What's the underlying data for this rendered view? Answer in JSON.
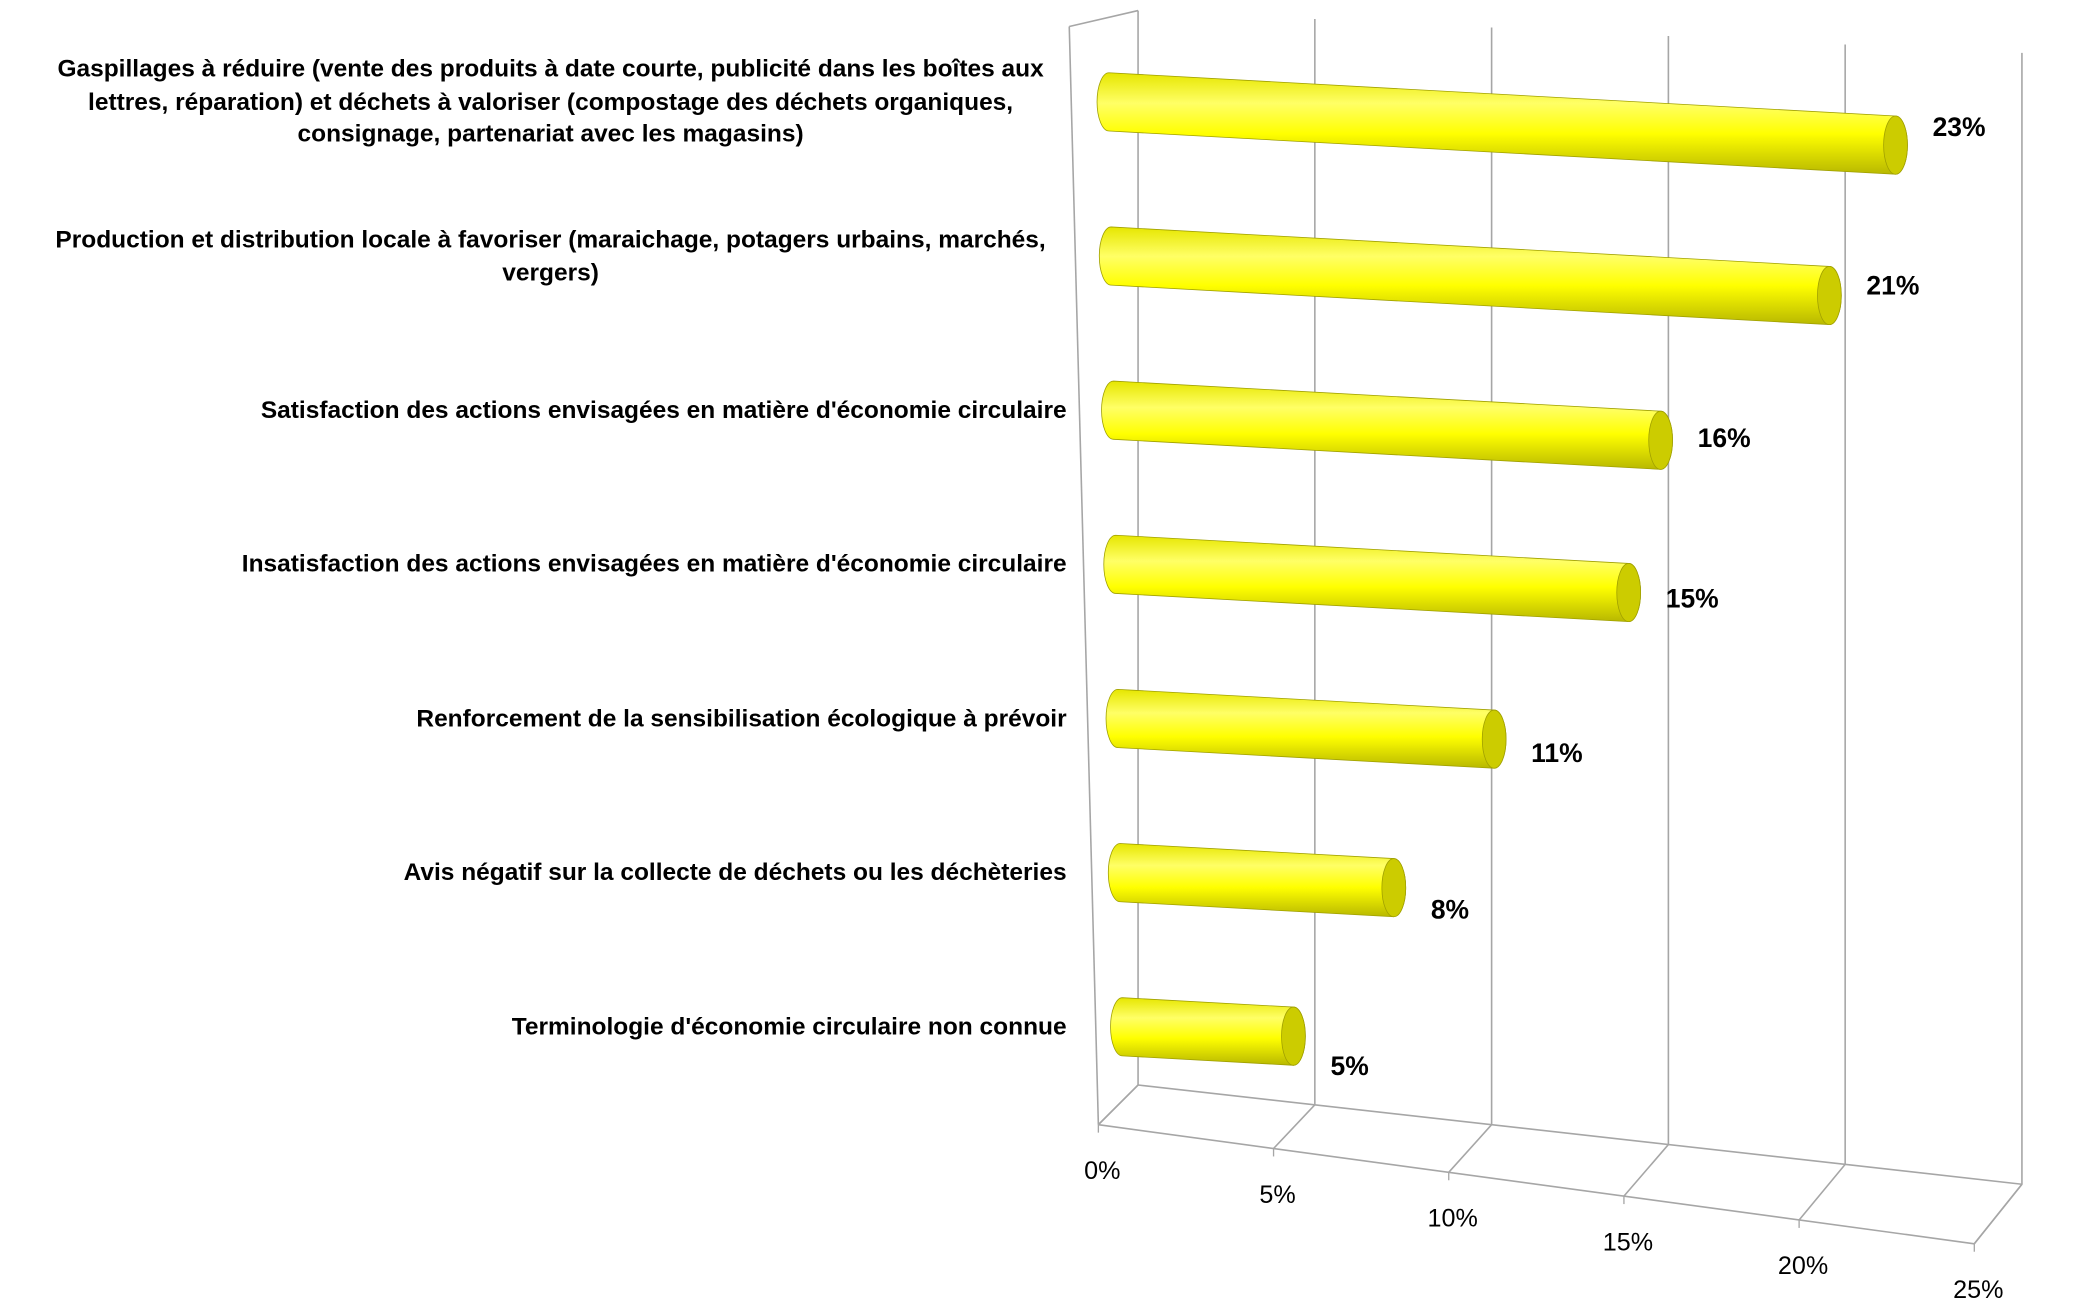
{
  "chart_data": {
    "type": "bar3d",
    "categories": [
      "Gaspillages à réduire (vente des produits à date courte, publicité dans les boîtes aux lettres, réparation) et déchets à valoriser (compostage des déchets organiques, consignage, partenariat avec les magasins)",
      "Production et distribution locale à favoriser (maraichage, potagers urbains, marchés, vergers)",
      "Satisfaction des actions envisagées en matière d'économie circulaire",
      "Insatisfaction des actions envisagées en matière d'économie circulaire",
      "Renforcement de la sensibilisation écologique à prévoir",
      "Avis négatif sur la collecte de déchets ou les déchèteries",
      "Terminologie d'économie circulaire non connue"
    ],
    "values": [
      23,
      21,
      16,
      15,
      11,
      8,
      5
    ],
    "value_labels": [
      "23%",
      "21%",
      "16%",
      "15%",
      "11%",
      "8%",
      "5%"
    ],
    "color": "#ffff00",
    "xlim": [
      0,
      25
    ],
    "xticks": [
      {
        "value": 0,
        "label": "0%"
      },
      {
        "value": 5,
        "label": "5%"
      },
      {
        "value": 10,
        "label": "10%"
      },
      {
        "value": 15,
        "label": "15%"
      },
      {
        "value": 20,
        "label": "20%"
      },
      {
        "value": 25,
        "label": "25%"
      }
    ],
    "grid": true
  }
}
